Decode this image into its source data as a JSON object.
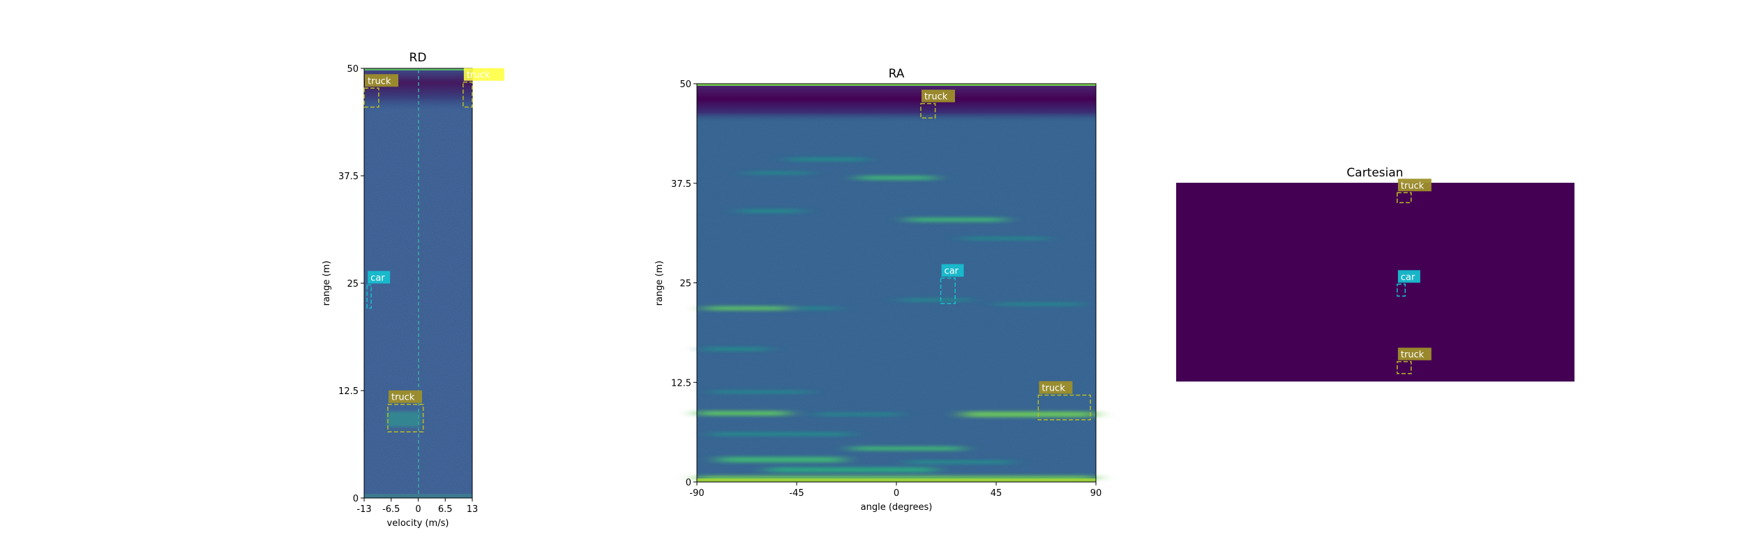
{
  "colors": {
    "viridis_dark": "#440154",
    "background_blue": "#34588c",
    "car": "#17becf",
    "truck": "#bcbd22",
    "truck_label_bg": "#9e8f2a",
    "highlight": "#ffff44"
  },
  "chart_data": [
    {
      "id": "rd",
      "type": "heatmap",
      "title": "RD",
      "xlabel": "velocity (m/s)",
      "ylabel": "range (m)",
      "xlim": [
        -13,
        13
      ],
      "ylim": [
        0,
        50
      ],
      "xticks": [
        "-13",
        "-6.5",
        "0",
        "6.5",
        "13"
      ],
      "xtick_values": [
        -13,
        -6.5,
        0,
        6.5,
        13
      ],
      "yticks": [
        "0",
        "12.5",
        "25",
        "37.5",
        "50"
      ],
      "ytick_values": [
        0,
        12.5,
        25,
        37.5,
        50
      ],
      "boxes": [
        {
          "label": "truck",
          "class": "truck",
          "x0": -13,
          "x1": -9.5,
          "y0": 45.5,
          "y1": 47.7
        },
        {
          "label": "truck",
          "class": "truck",
          "x0": 10.8,
          "x1": 13,
          "y0": 45.5,
          "y1": 48.4
        },
        {
          "label": "car",
          "class": "car",
          "x0": -12.3,
          "x1": -11.3,
          "y0": 22.1,
          "y1": 24.8
        },
        {
          "label": "truck",
          "class": "truck",
          "x0": -7.3,
          "x1": 1.2,
          "y0": 7.7,
          "y1": 10.9
        }
      ]
    },
    {
      "id": "ra",
      "type": "heatmap",
      "title": "RA",
      "xlabel": "angle (degrees)",
      "ylabel": "range (m)",
      "xlim": [
        -90,
        90
      ],
      "ylim": [
        0,
        50
      ],
      "xticks": [
        "-90",
        "-45",
        "0",
        "45",
        "90"
      ],
      "xtick_values": [
        -90,
        -45,
        0,
        45,
        90
      ],
      "yticks": [
        "0",
        "12.5",
        "25",
        "37.5",
        "50"
      ],
      "ytick_values": [
        0,
        12.5,
        25,
        37.5,
        50
      ],
      "boxes": [
        {
          "label": "truck",
          "class": "truck",
          "x0": 11,
          "x1": 17.5,
          "y0": 45.7,
          "y1": 47.5
        },
        {
          "label": "car",
          "class": "car",
          "x0": 20,
          "x1": 26.5,
          "y0": 22.4,
          "y1": 25.6
        },
        {
          "label": "truck",
          "class": "truck",
          "x0": 64,
          "x1": 87.5,
          "y0": 7.8,
          "y1": 10.9
        }
      ]
    },
    {
      "id": "cart",
      "type": "heatmap",
      "title": "Cartesian",
      "xlim": [
        -50,
        50
      ],
      "ylim": [
        0,
        50
      ],
      "boxes": [
        {
          "label": "truck",
          "class": "truck",
          "x0": 5.5,
          "x1": 9,
          "y0": 45,
          "y1": 47.5
        },
        {
          "label": "car",
          "class": "car",
          "x0": 5.5,
          "x1": 7.5,
          "y0": 21.5,
          "y1": 24.5
        },
        {
          "label": "truck",
          "class": "truck",
          "x0": 5.5,
          "x1": 9,
          "y0": 2,
          "y1": 5
        }
      ]
    }
  ]
}
